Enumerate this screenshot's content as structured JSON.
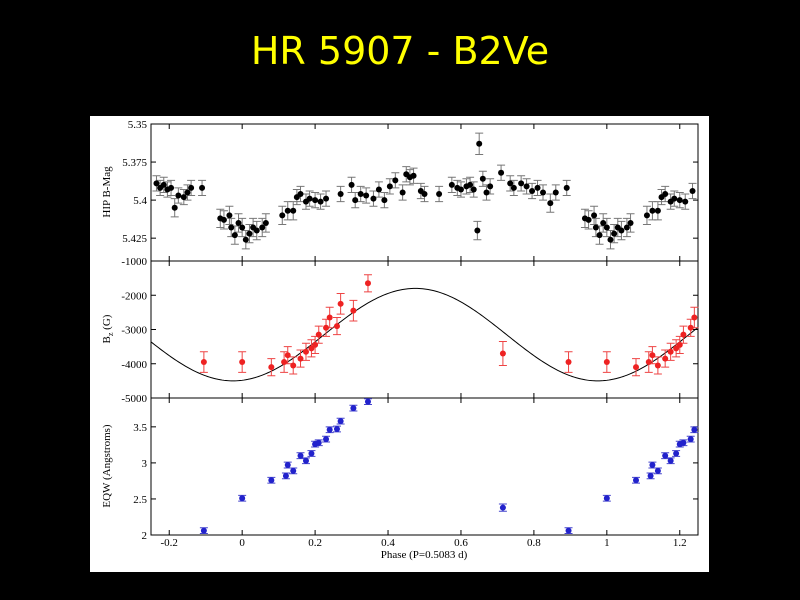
{
  "slide": {
    "title": "HR 5907 - B2Ve"
  },
  "chart_data": [
    {
      "type": "scatter",
      "panel": "top",
      "ylabel": "HIP B-Mag",
      "ylim": [
        5.35,
        5.44
      ],
      "y_inverted": true,
      "yticks": [
        5.35,
        5.375,
        5.4,
        5.425
      ],
      "ytick_labels": [
        "5.35",
        "5.375",
        "5.4",
        "5.425"
      ],
      "xlim": [
        -0.25,
        1.25
      ],
      "marker_color": "#000000",
      "error_bar_color": "#777777",
      "series": [
        {
          "points": [
            {
              "x": -0.235,
              "y": 5.389,
              "e": 0.005
            },
            {
              "x": -0.225,
              "y": 5.392,
              "e": 0.005
            },
            {
              "x": -0.215,
              "y": 5.39,
              "e": 0.005
            },
            {
              "x": -0.205,
              "y": 5.393,
              "e": 0.005
            },
            {
              "x": -0.195,
              "y": 5.392,
              "e": 0.005
            },
            {
              "x": -0.185,
              "y": 5.405,
              "e": 0.006
            },
            {
              "x": -0.175,
              "y": 5.397,
              "e": 0.005
            },
            {
              "x": -0.16,
              "y": 5.398,
              "e": 0.005
            },
            {
              "x": -0.15,
              "y": 5.395,
              "e": 0.005
            },
            {
              "x": -0.14,
              "y": 5.392,
              "e": 0.005
            },
            {
              "x": -0.11,
              "y": 5.392,
              "e": 0.005
            },
            {
              "x": -0.06,
              "y": 5.412,
              "e": 0.006
            },
            {
              "x": -0.05,
              "y": 5.413,
              "e": 0.006
            },
            {
              "x": -0.035,
              "y": 5.41,
              "e": 0.006
            },
            {
              "x": -0.03,
              "y": 5.418,
              "e": 0.006
            },
            {
              "x": -0.02,
              "y": 5.423,
              "e": 0.006
            },
            {
              "x": -0.01,
              "y": 5.415,
              "e": 0.006
            },
            {
              "x": 0.0,
              "y": 5.418,
              "e": 0.006
            },
            {
              "x": 0.01,
              "y": 5.426,
              "e": 0.006
            },
            {
              "x": 0.02,
              "y": 5.422,
              "e": 0.006
            },
            {
              "x": 0.03,
              "y": 5.418,
              "e": 0.006
            },
            {
              "x": 0.04,
              "y": 5.42,
              "e": 0.006
            },
            {
              "x": 0.055,
              "y": 5.418,
              "e": 0.006
            },
            {
              "x": 0.065,
              "y": 5.415,
              "e": 0.006
            },
            {
              "x": 0.11,
              "y": 5.41,
              "e": 0.006
            },
            {
              "x": 0.125,
              "y": 5.407,
              "e": 0.006
            },
            {
              "x": 0.14,
              "y": 5.407,
              "e": 0.006
            },
            {
              "x": 0.15,
              "y": 5.398,
              "e": 0.005
            },
            {
              "x": 0.16,
              "y": 5.396,
              "e": 0.005
            },
            {
              "x": 0.175,
              "y": 5.401,
              "e": 0.005
            },
            {
              "x": 0.185,
              "y": 5.399,
              "e": 0.005
            },
            {
              "x": 0.2,
              "y": 5.4,
              "e": 0.005
            },
            {
              "x": 0.215,
              "y": 5.401,
              "e": 0.005
            },
            {
              "x": 0.23,
              "y": 5.399,
              "e": 0.005
            },
            {
              "x": 0.27,
              "y": 5.396,
              "e": 0.005
            },
            {
              "x": 0.3,
              "y": 5.39,
              "e": 0.005
            },
            {
              "x": 0.31,
              "y": 5.4,
              "e": 0.005
            },
            {
              "x": 0.325,
              "y": 5.396,
              "e": 0.005
            },
            {
              "x": 0.34,
              "y": 5.397,
              "e": 0.005
            },
            {
              "x": 0.36,
              "y": 5.399,
              "e": 0.005
            },
            {
              "x": 0.375,
              "y": 5.393,
              "e": 0.005
            },
            {
              "x": 0.39,
              "y": 5.4,
              "e": 0.005
            },
            {
              "x": 0.405,
              "y": 5.391,
              "e": 0.005
            },
            {
              "x": 0.42,
              "y": 5.387,
              "e": 0.005
            },
            {
              "x": 0.44,
              "y": 5.395,
              "e": 0.005
            },
            {
              "x": 0.45,
              "y": 5.383,
              "e": 0.005
            },
            {
              "x": 0.46,
              "y": 5.385,
              "e": 0.005
            },
            {
              "x": 0.47,
              "y": 5.384,
              "e": 0.005
            },
            {
              "x": 0.49,
              "y": 5.394,
              "e": 0.005
            },
            {
              "x": 0.5,
              "y": 5.396,
              "e": 0.005
            },
            {
              "x": 0.54,
              "y": 5.396,
              "e": 0.005
            },
            {
              "x": 0.575,
              "y": 5.39,
              "e": 0.005
            },
            {
              "x": 0.59,
              "y": 5.392,
              "e": 0.005
            },
            {
              "x": 0.6,
              "y": 5.393,
              "e": 0.005
            },
            {
              "x": 0.615,
              "y": 5.391,
              "e": 0.005
            },
            {
              "x": 0.625,
              "y": 5.39,
              "e": 0.005
            },
            {
              "x": 0.635,
              "y": 5.393,
              "e": 0.005
            },
            {
              "x": 0.645,
              "y": 5.42,
              "e": 0.006
            },
            {
              "x": 0.65,
              "y": 5.363,
              "e": 0.007
            },
            {
              "x": 0.66,
              "y": 5.386,
              "e": 0.005
            },
            {
              "x": 0.67,
              "y": 5.395,
              "e": 0.005
            },
            {
              "x": 0.68,
              "y": 5.391,
              "e": 0.005
            },
            {
              "x": 0.71,
              "y": 5.382,
              "e": 0.005
            },
            {
              "x": 0.735,
              "y": 5.389,
              "e": 0.005
            },
            {
              "x": 0.745,
              "y": 5.392,
              "e": 0.005
            },
            {
              "x": 0.765,
              "y": 5.389,
              "e": 0.005
            },
            {
              "x": 0.78,
              "y": 5.391,
              "e": 0.005
            },
            {
              "x": 0.795,
              "y": 5.394,
              "e": 0.005
            },
            {
              "x": 0.81,
              "y": 5.392,
              "e": 0.005
            },
            {
              "x": 0.825,
              "y": 5.395,
              "e": 0.005
            },
            {
              "x": 0.845,
              "y": 5.402,
              "e": 0.006
            },
            {
              "x": 0.86,
              "y": 5.395,
              "e": 0.005
            },
            {
              "x": 0.89,
              "y": 5.392,
              "e": 0.005
            },
            {
              "x": 0.94,
              "y": 5.412,
              "e": 0.006
            },
            {
              "x": 0.95,
              "y": 5.413,
              "e": 0.006
            },
            {
              "x": 0.965,
              "y": 5.41,
              "e": 0.006
            },
            {
              "x": 0.97,
              "y": 5.418,
              "e": 0.006
            },
            {
              "x": 0.98,
              "y": 5.423,
              "e": 0.006
            },
            {
              "x": 0.99,
              "y": 5.415,
              "e": 0.006
            },
            {
              "x": 1.0,
              "y": 5.418,
              "e": 0.006
            },
            {
              "x": 1.01,
              "y": 5.426,
              "e": 0.006
            },
            {
              "x": 1.02,
              "y": 5.422,
              "e": 0.006
            },
            {
              "x": 1.03,
              "y": 5.418,
              "e": 0.006
            },
            {
              "x": 1.04,
              "y": 5.42,
              "e": 0.006
            },
            {
              "x": 1.055,
              "y": 5.418,
              "e": 0.006
            },
            {
              "x": 1.065,
              "y": 5.415,
              "e": 0.006
            },
            {
              "x": 1.11,
              "y": 5.41,
              "e": 0.006
            },
            {
              "x": 1.125,
              "y": 5.407,
              "e": 0.006
            },
            {
              "x": 1.14,
              "y": 5.407,
              "e": 0.006
            },
            {
              "x": 1.15,
              "y": 5.398,
              "e": 0.005
            },
            {
              "x": 1.16,
              "y": 5.396,
              "e": 0.005
            },
            {
              "x": 1.175,
              "y": 5.401,
              "e": 0.005
            },
            {
              "x": 1.185,
              "y": 5.399,
              "e": 0.005
            },
            {
              "x": 1.2,
              "y": 5.4,
              "e": 0.005
            },
            {
              "x": 1.215,
              "y": 5.401,
              "e": 0.005
            },
            {
              "x": 1.235,
              "y": 5.394,
              "e": 0.005
            }
          ]
        }
      ]
    },
    {
      "type": "scatter",
      "panel": "middle",
      "ylabel": "B_z (G)",
      "ylim": [
        -5000,
        -1000
      ],
      "yticks": [
        -5000,
        -4000,
        -3000,
        -2000,
        -1000
      ],
      "ytick_labels": [
        "-5000",
        "-4000",
        "-3000",
        "-2000",
        "-1000"
      ],
      "xlim": [
        -0.25,
        1.25
      ],
      "marker_color": "#ee2222",
      "error_bar_color": "#ee4444",
      "model_curve": {
        "center": -3150,
        "amplitude": 1350,
        "phase_of_max": 0.475,
        "color": "#000000"
      },
      "series": [
        {
          "points": [
            {
              "x": -0.105,
              "y": -3950,
              "e": 300
            },
            {
              "x": 0.0,
              "y": -3950,
              "e": 300
            },
            {
              "x": 0.08,
              "y": -4100,
              "e": 250
            },
            {
              "x": 0.115,
              "y": -3950,
              "e": 300
            },
            {
              "x": 0.125,
              "y": -3750,
              "e": 250
            },
            {
              "x": 0.14,
              "y": -4050,
              "e": 250
            },
            {
              "x": 0.16,
              "y": -3850,
              "e": 250
            },
            {
              "x": 0.175,
              "y": -3650,
              "e": 250
            },
            {
              "x": 0.19,
              "y": -3550,
              "e": 250
            },
            {
              "x": 0.2,
              "y": -3450,
              "e": 250
            },
            {
              "x": 0.21,
              "y": -3150,
              "e": 250
            },
            {
              "x": 0.23,
              "y": -2950,
              "e": 250
            },
            {
              "x": 0.24,
              "y": -2650,
              "e": 300
            },
            {
              "x": 0.26,
              "y": -2900,
              "e": 250
            },
            {
              "x": 0.27,
              "y": -2250,
              "e": 300
            },
            {
              "x": 0.305,
              "y": -2450,
              "e": 300
            },
            {
              "x": 0.345,
              "y": -1650,
              "e": 250
            },
            {
              "x": 0.715,
              "y": -3700,
              "e": 350
            },
            {
              "x": 0.895,
              "y": -3950,
              "e": 300
            },
            {
              "x": 1.0,
              "y": -3950,
              "e": 300
            },
            {
              "x": 1.08,
              "y": -4100,
              "e": 250
            },
            {
              "x": 1.115,
              "y": -3950,
              "e": 300
            },
            {
              "x": 1.125,
              "y": -3750,
              "e": 250
            },
            {
              "x": 1.14,
              "y": -4050,
              "e": 250
            },
            {
              "x": 1.16,
              "y": -3850,
              "e": 250
            },
            {
              "x": 1.175,
              "y": -3650,
              "e": 250
            },
            {
              "x": 1.19,
              "y": -3550,
              "e": 250
            },
            {
              "x": 1.2,
              "y": -3450,
              "e": 250
            },
            {
              "x": 1.21,
              "y": -3150,
              "e": 250
            },
            {
              "x": 1.23,
              "y": -2950,
              "e": 250
            },
            {
              "x": 1.24,
              "y": -2650,
              "e": 300
            }
          ]
        }
      ]
    },
    {
      "type": "scatter",
      "panel": "bottom",
      "ylabel": "EQW (Angstroms)",
      "xlabel": "Phase (P=0.5083 d)",
      "ylim": [
        2.0,
        3.9
      ],
      "yticks": [
        2,
        2.5,
        3,
        3.5
      ],
      "ytick_labels": [
        "2",
        "2.5",
        "3",
        "3.5"
      ],
      "xlim": [
        -0.25,
        1.25
      ],
      "xticks": [
        -0.2,
        0,
        0.2,
        0.4,
        0.6,
        0.8,
        1,
        1.2
      ],
      "xtick_labels": [
        "-0.2",
        "0",
        "0.2",
        "0.4",
        "0.6",
        "0.8",
        "1",
        "1.2"
      ],
      "marker_color": "#2222cc",
      "error_bar_color": "#4444cc",
      "series": [
        {
          "points": [
            {
              "x": -0.105,
              "y": 2.06,
              "e": 0.04
            },
            {
              "x": 0.0,
              "y": 2.51,
              "e": 0.04
            },
            {
              "x": 0.08,
              "y": 2.76,
              "e": 0.04
            },
            {
              "x": 0.12,
              "y": 2.82,
              "e": 0.04
            },
            {
              "x": 0.125,
              "y": 2.97,
              "e": 0.04
            },
            {
              "x": 0.14,
              "y": 2.89,
              "e": 0.04
            },
            {
              "x": 0.16,
              "y": 3.1,
              "e": 0.04
            },
            {
              "x": 0.175,
              "y": 3.03,
              "e": 0.04
            },
            {
              "x": 0.19,
              "y": 3.13,
              "e": 0.04
            },
            {
              "x": 0.2,
              "y": 3.26,
              "e": 0.04
            },
            {
              "x": 0.21,
              "y": 3.28,
              "e": 0.04
            },
            {
              "x": 0.23,
              "y": 3.33,
              "e": 0.04
            },
            {
              "x": 0.24,
              "y": 3.46,
              "e": 0.04
            },
            {
              "x": 0.26,
              "y": 3.47,
              "e": 0.04
            },
            {
              "x": 0.27,
              "y": 3.58,
              "e": 0.04
            },
            {
              "x": 0.305,
              "y": 3.76,
              "e": 0.04
            },
            {
              "x": 0.345,
              "y": 3.85,
              "e": 0.04
            },
            {
              "x": 0.715,
              "y": 2.38,
              "e": 0.05
            },
            {
              "x": 0.895,
              "y": 2.06,
              "e": 0.04
            },
            {
              "x": 1.0,
              "y": 2.51,
              "e": 0.04
            },
            {
              "x": 1.08,
              "y": 2.76,
              "e": 0.04
            },
            {
              "x": 1.12,
              "y": 2.82,
              "e": 0.04
            },
            {
              "x": 1.125,
              "y": 2.97,
              "e": 0.04
            },
            {
              "x": 1.14,
              "y": 2.89,
              "e": 0.04
            },
            {
              "x": 1.16,
              "y": 3.1,
              "e": 0.04
            },
            {
              "x": 1.175,
              "y": 3.03,
              "e": 0.04
            },
            {
              "x": 1.19,
              "y": 3.13,
              "e": 0.04
            },
            {
              "x": 1.2,
              "y": 3.26,
              "e": 0.04
            },
            {
              "x": 1.21,
              "y": 3.28,
              "e": 0.04
            },
            {
              "x": 1.23,
              "y": 3.33,
              "e": 0.04
            },
            {
              "x": 1.24,
              "y": 3.46,
              "e": 0.04
            }
          ]
        }
      ]
    }
  ]
}
